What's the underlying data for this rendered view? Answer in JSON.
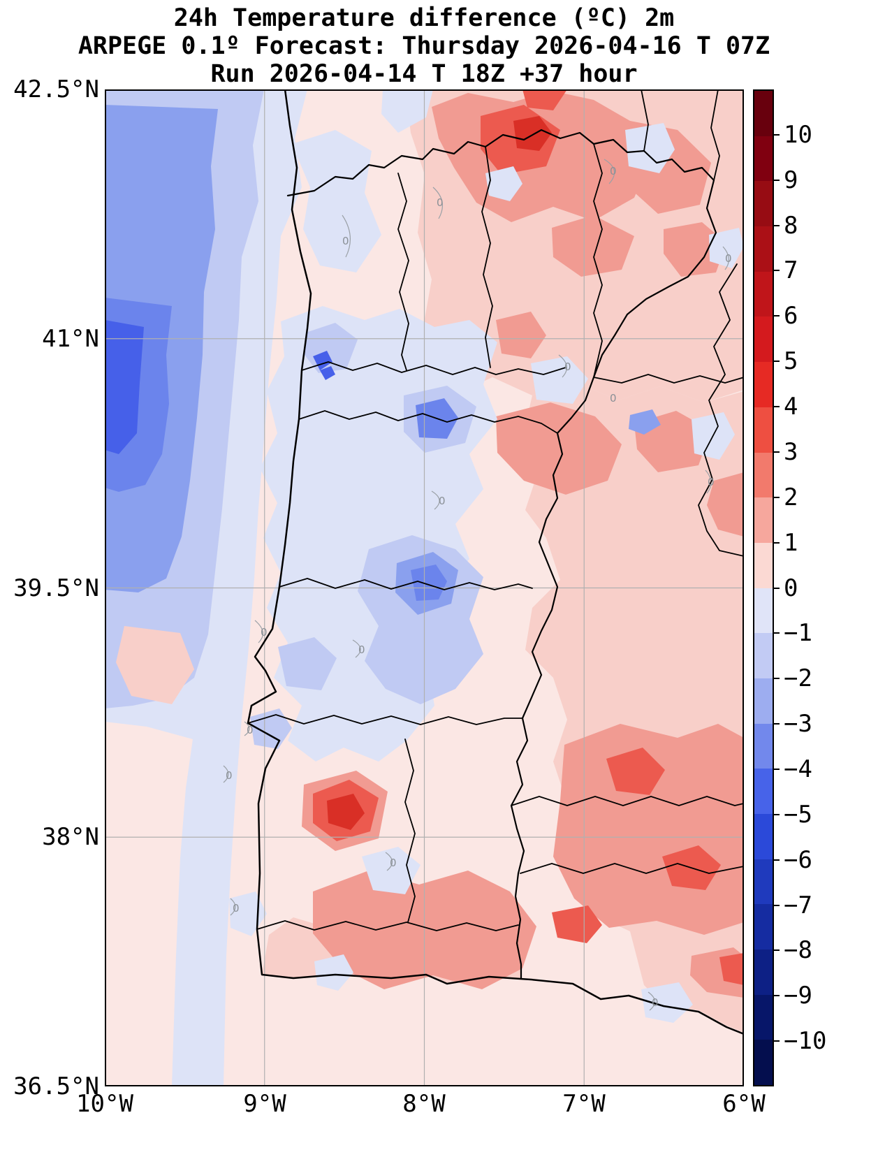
{
  "title": {
    "line1": "24h Temperature difference (ºC) 2m",
    "line2": "ARPEGE 0.1º Forecast: Thursday 2026-04-16 T 07Z",
    "line3": "Run 2026-04-14 T 18Z +37 hour"
  },
  "axes": {
    "lat_ticks": [
      "42.5°N",
      "41°N",
      "39.5°N",
      "38°N",
      "36.5°N"
    ],
    "lon_ticks": [
      "10°W",
      "9°W",
      "8°W",
      "7°W",
      "6°W"
    ]
  },
  "colorbar": {
    "tick_labels": [
      "10",
      "9",
      "8",
      "7",
      "6",
      "5",
      "4",
      "3",
      "2",
      "1",
      "0",
      "−1",
      "−2",
      "−3",
      "−4",
      "−5",
      "−6",
      "−7",
      "−8",
      "−9",
      "−10"
    ],
    "segment_colors_top_to_bottom": [
      "#68000d",
      "#800010",
      "#970c13",
      "#ab1016",
      "#c0151a",
      "#d41a1e",
      "#e62a24",
      "#ee4f41",
      "#f27a6c",
      "#f6a79d",
      "#fbd9d3",
      "#e0e4f8",
      "#c2cbf4",
      "#9dadf0",
      "#7288ec",
      "#4763e9",
      "#2b49d9",
      "#1f3abd",
      "#152ca1",
      "#0d2085",
      "#071669",
      "#040e4e"
    ]
  },
  "map": {
    "zero_contour_label": "0",
    "palette": {
      "base": "#fbe7e4",
      "pink": "#f8cfc9",
      "salmon": "#f19b92",
      "red": "#ec5a4f",
      "darkred": "#d92f26",
      "lavender": "#dde3f7",
      "periwinkle": "#c0caf3",
      "blue": "#8aa0ee",
      "blue2": "#6b84ec",
      "blue3": "#4660e9",
      "contour_gray": "#9aa0a6",
      "grid_gray": "#b0b0b0"
    }
  }
}
